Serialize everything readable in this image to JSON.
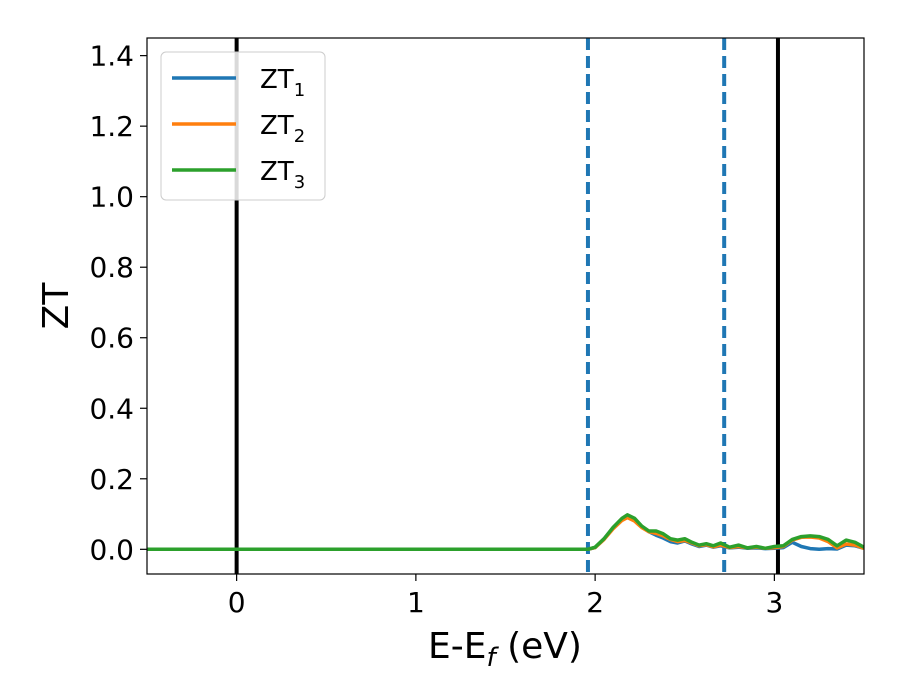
{
  "chart_data": {
    "type": "line",
    "title": "",
    "xlabel": "E-E",
    "xlabel_sub": "f",
    "xlabel_unit": " (eV)",
    "ylabel": "ZT",
    "xlim": [
      -0.5,
      3.5
    ],
    "ylim": [
      -0.07,
      1.45
    ],
    "xticks": [
      0,
      1,
      2,
      3
    ],
    "xtick_labels": [
      "0",
      "1",
      "2",
      "3"
    ],
    "yticks": [
      0.0,
      0.2,
      0.4,
      0.6,
      0.8,
      1.0,
      1.2,
      1.4
    ],
    "ytick_labels": [
      "0.0",
      "0.2",
      "0.4",
      "0.6",
      "0.8",
      "1.0",
      "1.2",
      "1.4"
    ],
    "grid": false,
    "legend_position": "top-left",
    "vlines": [
      {
        "x": 0.0,
        "style": "solid",
        "color": "#000000"
      },
      {
        "x": 1.96,
        "style": "dashed",
        "color": "#1f77b4"
      },
      {
        "x": 2.72,
        "style": "dashed",
        "color": "#1f77b4"
      },
      {
        "x": 3.02,
        "style": "solid",
        "color": "#000000"
      }
    ],
    "series": [
      {
        "name": "ZT",
        "name_sub": "1",
        "color": "#1f77b4",
        "x": [
          -0.5,
          1.9,
          1.96,
          2.0,
          2.05,
          2.1,
          2.15,
          2.18,
          2.22,
          2.26,
          2.3,
          2.34,
          2.38,
          2.42,
          2.46,
          2.5,
          2.54,
          2.58,
          2.62,
          2.66,
          2.7,
          2.75,
          2.8,
          2.85,
          2.9,
          2.95,
          3.0,
          3.05,
          3.1,
          3.15,
          3.2,
          3.25,
          3.3,
          3.35,
          3.4,
          3.45,
          3.5
        ],
        "y": [
          0.0,
          0.0,
          0.0,
          0.005,
          0.03,
          0.06,
          0.085,
          0.095,
          0.085,
          0.065,
          0.05,
          0.04,
          0.032,
          0.022,
          0.018,
          0.024,
          0.015,
          0.008,
          0.012,
          0.006,
          0.01,
          0.004,
          0.006,
          0.003,
          0.004,
          0.002,
          0.003,
          0.005,
          0.02,
          0.008,
          0.002,
          0.0,
          0.002,
          0.001,
          0.012,
          0.01,
          0.003
        ]
      },
      {
        "name": "ZT",
        "name_sub": "2",
        "color": "#ff7f0e",
        "x": [
          -0.5,
          1.9,
          1.96,
          2.0,
          2.05,
          2.1,
          2.15,
          2.18,
          2.22,
          2.26,
          2.3,
          2.34,
          2.38,
          2.42,
          2.46,
          2.5,
          2.54,
          2.58,
          2.62,
          2.66,
          2.7,
          2.75,
          2.8,
          2.85,
          2.9,
          2.95,
          3.0,
          3.05,
          3.1,
          3.15,
          3.2,
          3.25,
          3.3,
          3.35,
          3.4,
          3.45,
          3.5
        ],
        "y": [
          0.0,
          0.0,
          0.0,
          0.005,
          0.028,
          0.058,
          0.082,
          0.09,
          0.08,
          0.062,
          0.05,
          0.045,
          0.038,
          0.028,
          0.022,
          0.025,
          0.018,
          0.01,
          0.013,
          0.007,
          0.012,
          0.005,
          0.008,
          0.004,
          0.006,
          0.003,
          0.005,
          0.008,
          0.026,
          0.034,
          0.035,
          0.032,
          0.022,
          0.004,
          0.015,
          0.012,
          0.003
        ]
      },
      {
        "name": "ZT",
        "name_sub": "3",
        "color": "#2ca02c",
        "x": [
          -0.5,
          1.9,
          1.96,
          2.0,
          2.05,
          2.1,
          2.15,
          2.18,
          2.22,
          2.26,
          2.3,
          2.34,
          2.38,
          2.42,
          2.46,
          2.5,
          2.54,
          2.58,
          2.62,
          2.66,
          2.7,
          2.75,
          2.8,
          2.85,
          2.9,
          2.95,
          3.0,
          3.05,
          3.1,
          3.15,
          3.2,
          3.25,
          3.3,
          3.35,
          3.4,
          3.45,
          3.5
        ],
        "y": [
          0.0,
          0.0,
          0.0,
          0.006,
          0.03,
          0.062,
          0.088,
          0.098,
          0.088,
          0.066,
          0.052,
          0.052,
          0.044,
          0.03,
          0.026,
          0.03,
          0.02,
          0.012,
          0.016,
          0.01,
          0.018,
          0.006,
          0.012,
          0.004,
          0.008,
          0.003,
          0.008,
          0.01,
          0.028,
          0.036,
          0.038,
          0.036,
          0.028,
          0.01,
          0.026,
          0.02,
          0.006
        ]
      }
    ]
  }
}
